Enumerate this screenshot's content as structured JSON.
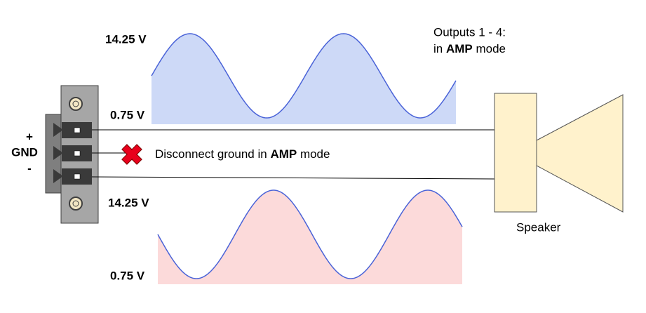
{
  "waves": {
    "top": {
      "max_label": "14.25 V",
      "min_label": "0.75 V"
    },
    "bottom": {
      "max_label": "14.25 V",
      "min_label": "0.75 V"
    }
  },
  "connector": {
    "pins": [
      "+",
      "GND",
      "-"
    ]
  },
  "note": {
    "parts": [
      "Disconnect ground in ",
      "AMP",
      " mode"
    ]
  },
  "outputs_note": {
    "line1": "Outputs 1 - 4:",
    "line2_parts": [
      "in ",
      "AMP",
      " mode"
    ]
  },
  "speaker": {
    "label": "Speaker"
  }
}
